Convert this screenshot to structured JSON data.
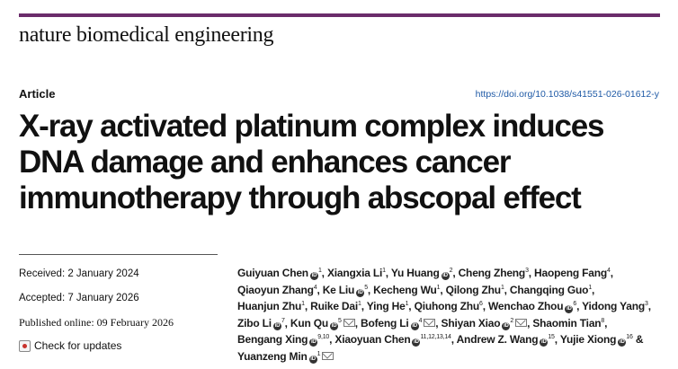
{
  "header": {
    "journal": "nature biomedical engineering",
    "bar_color": "#6b2c6b"
  },
  "article": {
    "type": "Article",
    "doi": "https://doi.org/10.1038/s41551-026-01612-y",
    "title_lines": [
      "X-ray activated platinum complex induces",
      "DNA damage and enhances cancer",
      "immunotherapy through abscopal effect"
    ]
  },
  "dates": {
    "received": "Received: 2 January 2024",
    "accepted": "Accepted: 7 January 2026",
    "published": "Published online: 09 February 2026",
    "check_updates": "Check for updates"
  },
  "authors": [
    {
      "name": "Guiyuan Chen",
      "orcid": true,
      "aff": "1",
      "sep": ","
    },
    {
      "name": "Xiangxia Li",
      "aff": "1",
      "sep": ","
    },
    {
      "name": "Yu Huang",
      "orcid": true,
      "aff": "2",
      "sep": ","
    },
    {
      "name": "Cheng Zheng",
      "aff": "3",
      "sep": ","
    },
    {
      "name": "Haopeng Fang",
      "aff": "4",
      "sep": ","
    },
    {
      "name": "Qiaoyun Zhang",
      "aff": "4",
      "sep": ","
    },
    {
      "name": "Ke Liu",
      "orcid": true,
      "aff": "5",
      "sep": ","
    },
    {
      "name": "Kecheng Wu",
      "aff": "1",
      "sep": ","
    },
    {
      "name": "Qilong Zhu",
      "aff": "1",
      "sep": ","
    },
    {
      "name": "Changqing Guo",
      "aff": "1",
      "sep": ","
    },
    {
      "name": "Huanjun Zhu",
      "aff": "1",
      "sep": ","
    },
    {
      "name": "Ruike Dai",
      "aff": "1",
      "sep": ","
    },
    {
      "name": "Ying He",
      "aff": "1",
      "sep": ","
    },
    {
      "name": "Qiuhong Zhu",
      "aff": "6",
      "sep": ","
    },
    {
      "name": "Wenchao Zhou",
      "orcid": true,
      "aff": "6",
      "sep": ","
    },
    {
      "name": "Yidong Yang",
      "aff": "3",
      "sep": ","
    },
    {
      "name": "Zibo Li",
      "orcid": true,
      "aff": "7",
      "sep": ","
    },
    {
      "name": "Kun Qu",
      "orcid": true,
      "aff": "5",
      "mail": true,
      "sep": ","
    },
    {
      "name": "Bofeng Li",
      "orcid": true,
      "aff": "4",
      "mail": true,
      "sep": ","
    },
    {
      "name": "Shiyan Xiao",
      "orcid": true,
      "aff": "2",
      "mail": true,
      "sep": ","
    },
    {
      "name": "Shaomin Tian",
      "aff": "8",
      "sep": ","
    },
    {
      "name": "Bengang Xing",
      "orcid": true,
      "aff": "9,10",
      "sep": ","
    },
    {
      "name": "Xiaoyuan Chen",
      "orcid": true,
      "aff": "11,12,13,14",
      "sep": ","
    },
    {
      "name": "Andrew Z. Wang",
      "orcid": true,
      "aff": "15",
      "sep": ","
    },
    {
      "name": "Yujie Xiong",
      "orcid": true,
      "aff": "16",
      "sep": " &"
    },
    {
      "name": "Yuanzeng Min",
      "orcid": true,
      "aff": "1",
      "mail": true,
      "sep": ""
    }
  ]
}
